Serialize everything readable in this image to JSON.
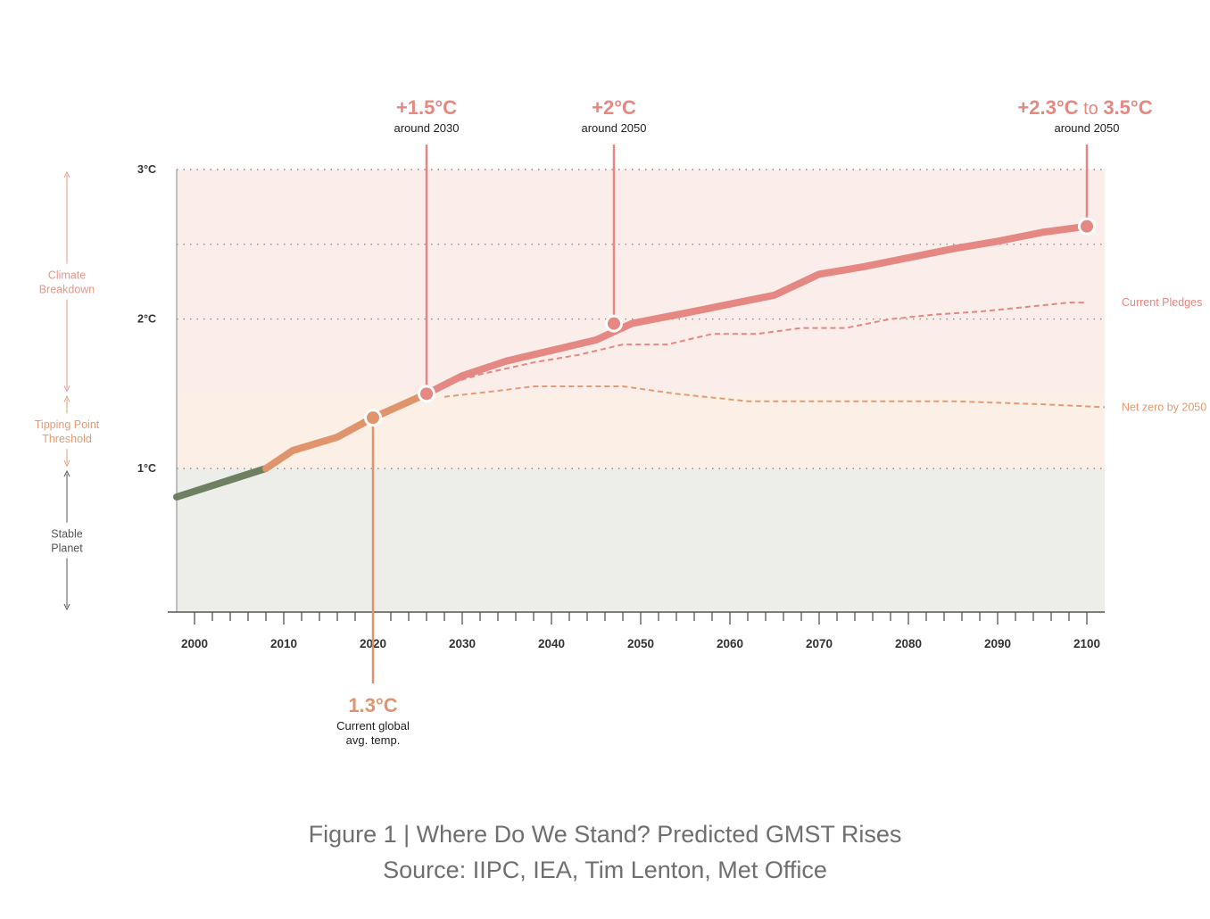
{
  "chart_data": {
    "type": "line",
    "x_ticks": [
      2000,
      2010,
      2020,
      2030,
      2040,
      2050,
      2060,
      2070,
      2080,
      2090,
      2100
    ],
    "y_ticks": [
      {
        "value": 1,
        "label": "1°C"
      },
      {
        "value": 2,
        "label": "2°C"
      },
      {
        "value": 3,
        "label": "3°C"
      }
    ],
    "xlim": [
      1998,
      2102
    ],
    "ylim": [
      0.04,
      3.0
    ],
    "bands": [
      {
        "name": "Stable Planet",
        "from": 0.04,
        "to": 1.0,
        "color": "#edeeea"
      },
      {
        "name": "Tipping Point Threshold",
        "from": 1.0,
        "to": 1.5,
        "color": "#fcefe6"
      },
      {
        "name": "Climate Breakdown",
        "from": 1.5,
        "to": 3.0,
        "color": "#faedea"
      }
    ],
    "band_labels": [
      {
        "text": "Climate\nBreakdown",
        "color": "#e8968d"
      },
      {
        "text": "Tipping Point\nThreshold",
        "color": "#e39c75"
      },
      {
        "text": "Stable\nPlanet",
        "color": "#555555"
      }
    ],
    "series": [
      {
        "name": "",
        "color": "#6f7f62",
        "points": [
          [
            1998,
            0.81
          ],
          [
            2008,
            1.0
          ]
        ]
      },
      {
        "name": "",
        "color": "#e0946c",
        "points": [
          [
            2008,
            1.0
          ],
          [
            2011,
            1.12
          ],
          [
            2016,
            1.21
          ],
          [
            2020,
            1.34
          ],
          [
            2026,
            1.5
          ]
        ]
      },
      {
        "name": "",
        "color": "#e58782",
        "points": [
          [
            2026,
            1.5
          ],
          [
            2030,
            1.62
          ],
          [
            2035,
            1.72
          ],
          [
            2040,
            1.79
          ],
          [
            2045,
            1.86
          ],
          [
            2049,
            1.97
          ],
          [
            2055,
            2.04
          ],
          [
            2060,
            2.1
          ],
          [
            2065,
            2.16
          ],
          [
            2070,
            2.3
          ],
          [
            2075,
            2.35
          ],
          [
            2080,
            2.41
          ],
          [
            2085,
            2.47
          ],
          [
            2090,
            2.52
          ],
          [
            2095,
            2.58
          ],
          [
            2100,
            2.62
          ]
        ]
      },
      {
        "name": "Current Pledges",
        "color": "#e58782",
        "dashed": true,
        "points": [
          [
            2027,
            1.54
          ],
          [
            2032,
            1.63
          ],
          [
            2038,
            1.71
          ],
          [
            2043,
            1.76
          ],
          [
            2048,
            1.83
          ],
          [
            2053,
            1.83
          ],
          [
            2058,
            1.9
          ],
          [
            2063,
            1.9
          ],
          [
            2068,
            1.94
          ],
          [
            2073,
            1.94
          ],
          [
            2078,
            2.0
          ],
          [
            2083,
            2.03
          ],
          [
            2088,
            2.05
          ],
          [
            2093,
            2.08
          ],
          [
            2098,
            2.11
          ],
          [
            2100,
            2.11
          ]
        ]
      },
      {
        "name": "Net zero by 2050",
        "color": "#e39c75",
        "dashed": true,
        "points": [
          [
            2028,
            1.48
          ],
          [
            2034,
            1.52
          ],
          [
            2038,
            1.55
          ],
          [
            2048,
            1.55
          ],
          [
            2054,
            1.5
          ],
          [
            2062,
            1.45
          ],
          [
            2075,
            1.45
          ],
          [
            2085,
            1.45
          ],
          [
            2095,
            1.43
          ],
          [
            2102,
            1.41
          ]
        ]
      }
    ],
    "markers": [
      {
        "x": 2020,
        "y": 1.34,
        "color": "#e0946c",
        "label": "1.3°C",
        "sublabel": "Current global\navg. temp.",
        "label_pos": "below"
      },
      {
        "x": 2026,
        "y": 1.5,
        "color": "#e58782",
        "label": "+1.5°C",
        "sublabel": "around 2030",
        "label_pos": "above"
      },
      {
        "x": 2047,
        "y": 1.97,
        "color": "#e58782",
        "label": "+2°C",
        "sublabel": "around 2050",
        "label_pos": "above"
      },
      {
        "x": 2100,
        "y": 2.62,
        "color": "#e58782",
        "label_parts": [
          "+2.3°C",
          " to ",
          "3.5°C"
        ],
        "sublabel": "around 2050",
        "label_pos": "above"
      }
    ]
  },
  "caption": {
    "line1": "Figure 1 | Where Do We Stand? Predicted GMST Rises",
    "line2": "Source: IIPC, IEA, Tim Lenton, Met Office"
  }
}
